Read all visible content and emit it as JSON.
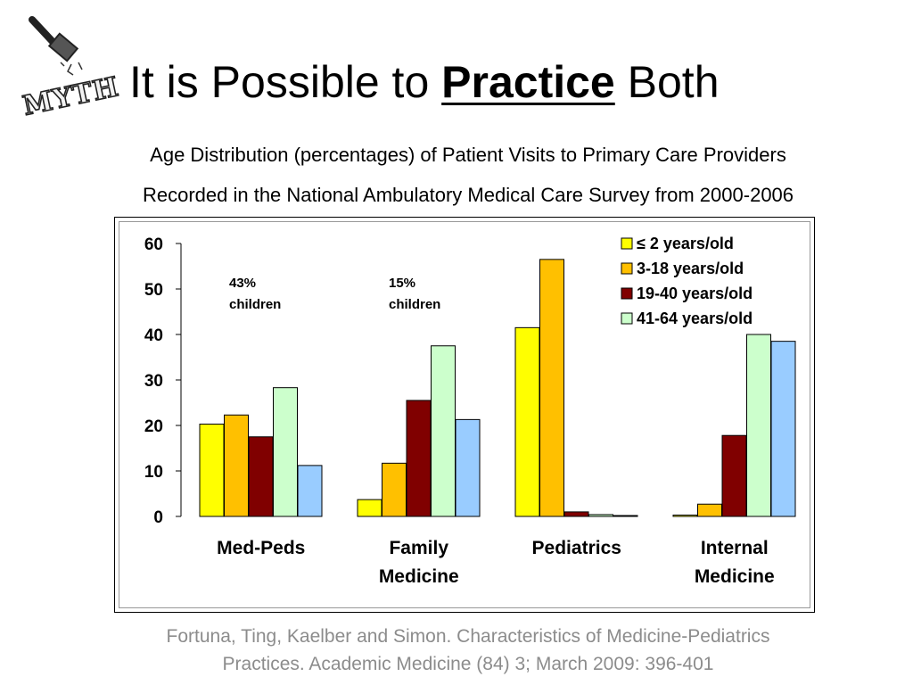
{
  "slide": {
    "title_pre": "It is Possible to ",
    "title_emph": "Practice",
    "title_post": " Both",
    "logo_text": "MYTH",
    "subtitle_line1": "Age Distribution (percentages) of Patient Visits to Primary Care Providers",
    "subtitle_line2": "Recorded in the National Ambulatory Medical Care Survey from 2000-2006",
    "citation_line1": "Fortuna, Ting, Kaelber and Simon.  Characteristics of Medicine-Pediatrics",
    "citation_line2": "Practices.  Academic Medicine (84) 3; March 2009: 396-401"
  },
  "chart_data": {
    "type": "bar",
    "categories": [
      [
        "Med-Peds"
      ],
      [
        "Family",
        "Medicine"
      ],
      [
        "Pediatrics"
      ],
      [
        "Internal",
        "Medicine"
      ]
    ],
    "series": [
      {
        "name": "≤ 2 years/old",
        "color": "#ffff00",
        "values": [
          20.3,
          3.7,
          41.5,
          0.3
        ]
      },
      {
        "name": "3-18 years/old",
        "color": "#ffc000",
        "values": [
          22.3,
          11.7,
          56.5,
          2.7
        ]
      },
      {
        "name": "19-40 years/old",
        "color": "#800000",
        "values": [
          17.5,
          25.5,
          1.0,
          17.8
        ]
      },
      {
        "name": "41-64 years/old",
        "color": "#ccffcc",
        "values": [
          28.3,
          37.5,
          0.4,
          40.0
        ]
      },
      {
        "color": "#99ccff",
        "values": [
          11.2,
          21.3,
          0.2,
          38.5
        ]
      }
    ],
    "ylim": [
      0,
      60
    ],
    "yticks": [
      0,
      10,
      20,
      30,
      40,
      50,
      60
    ],
    "annotations": [
      {
        "category_index": 0,
        "lines": [
          "43%",
          "children"
        ]
      },
      {
        "category_index": 1,
        "lines": [
          "15%",
          "children"
        ]
      }
    ],
    "legend": "top-right",
    "grid": false
  }
}
